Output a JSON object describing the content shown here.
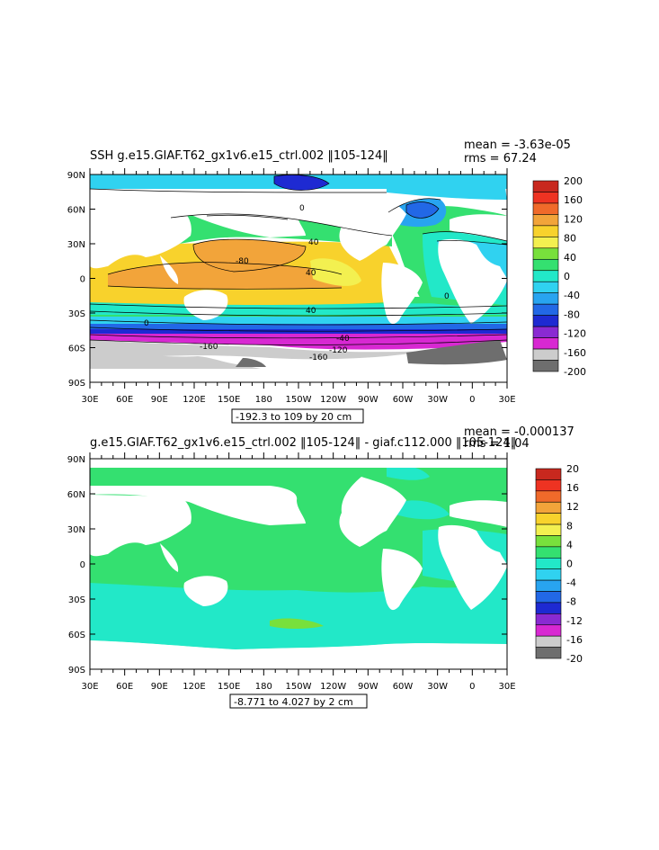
{
  "panels": [
    {
      "title": "SSH g.e15.GIAF.T62_gx1v6.e15_ctrl.002 ‖105-124‖",
      "mean_text": "mean = -3.63e-05",
      "rms_text": "rms = 67.24",
      "range_text": "-192.3 to 109 by 20 cm",
      "colorbar": {
        "labels": [
          "200",
          "160",
          "120",
          "80",
          "40",
          "0",
          "-40",
          "-80",
          "-120",
          "-160",
          "-200"
        ],
        "colors": [
          "#c8281e",
          "#ee3322",
          "#f06a2a",
          "#f2a43a",
          "#f8d22c",
          "#f3f050",
          "#78e03c",
          "#34e070",
          "#22e8c8",
          "#30d2f0",
          "#28a4f0",
          "#2268e6",
          "#1e2ad2",
          "#8a2ad2",
          "#d828d2",
          "#cccccc",
          "#6e6e6e"
        ]
      },
      "contour_labels": [
        "-80",
        "40",
        "40",
        "40",
        "0",
        "-40",
        "-120",
        "-160",
        "-160",
        "0",
        "0"
      ]
    },
    {
      "title": "g.e15.GIAF.T62_gx1v6.e15_ctrl.002 ‖105-124‖ - giaf.c112.000 ‖105-124‖",
      "mean_text": "mean = -0.000137",
      "rms_text": "rms = 1.04",
      "range_text": "-8.771 to 4.027 by 2 cm",
      "colorbar": {
        "labels": [
          "20",
          "16",
          "12",
          "8",
          "4",
          "0",
          "-4",
          "-8",
          "-12",
          "-16",
          "-20"
        ],
        "colors": [
          "#c8281e",
          "#ee3322",
          "#f06a2a",
          "#f2a43a",
          "#f8d22c",
          "#f3f050",
          "#78e03c",
          "#34e070",
          "#22e8c8",
          "#30d2f0",
          "#28a4f0",
          "#2268e6",
          "#1e2ad2",
          "#8a2ad2",
          "#d828d2",
          "#cccccc",
          "#6e6e6e"
        ]
      }
    }
  ],
  "lat_labels": [
    "90N",
    "60N",
    "30N",
    "0",
    "30S",
    "60S",
    "90S"
  ],
  "lon_labels": [
    "30E",
    "60E",
    "90E",
    "120E",
    "150E",
    "180",
    "150W",
    "120W",
    "90W",
    "60W",
    "30W",
    "0",
    "30E"
  ]
}
